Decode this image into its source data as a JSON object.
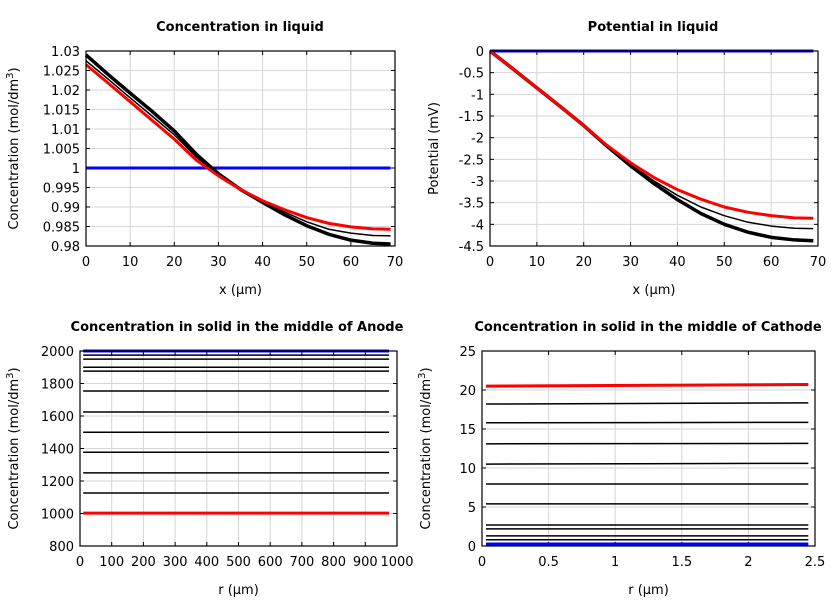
{
  "chart_data": [
    {
      "type": "line",
      "title": "Concentration in liquid",
      "xlabel": "x (µm)",
      "ylabel": "Concentration (mol/dm",
      "ylabel_sup": "3",
      "ylabel_end": ")",
      "xlim": [
        0,
        70
      ],
      "ylim": [
        0.98,
        1.03
      ],
      "xticks": [
        0,
        10,
        20,
        30,
        40,
        50,
        60,
        70
      ],
      "yticks": [
        0.98,
        0.985,
        0.99,
        0.995,
        1,
        1.005,
        1.01,
        1.015,
        1.02,
        1.025,
        1.03
      ],
      "grid": true,
      "x": [
        0,
        5,
        10,
        15,
        20,
        25,
        30,
        35,
        40,
        45,
        50,
        55,
        60,
        65,
        69
      ],
      "series": [
        {
          "color": "#0000ff",
          "width": 3,
          "values": [
            1,
            1,
            1,
            1,
            1,
            1,
            1,
            1,
            1,
            1,
            1,
            1,
            1,
            1,
            1
          ]
        },
        {
          "color": "#000000",
          "width": 3.5,
          "values": [
            1.029,
            1.024,
            1.0192,
            1.0145,
            1.0095,
            1.0035,
            0.9985,
            0.9945,
            0.9912,
            0.988,
            0.9852,
            0.983,
            0.9815,
            0.9807,
            0.9805
          ]
        },
        {
          "color": "#000000",
          "width": 1.5,
          "values": [
            1.0275,
            1.0228,
            1.018,
            1.0133,
            1.0085,
            1.0028,
            0.9982,
            0.9945,
            0.9914,
            0.9887,
            0.9862,
            0.9843,
            0.9833,
            0.9827,
            0.9826
          ]
        },
        {
          "color": "#ff0000",
          "width": 3,
          "values": [
            1.0265,
            1.0218,
            1.017,
            1.0122,
            1.0074,
            1.002,
            0.998,
            0.9945,
            0.9916,
            0.9893,
            0.9873,
            0.9858,
            0.9849,
            0.9844,
            0.9843
          ]
        }
      ]
    },
    {
      "type": "line",
      "title": "Potential in liquid",
      "xlabel": "x (µm)",
      "ylabel": "Potential (mV)",
      "xlim": [
        0,
        70
      ],
      "ylim": [
        -4.5,
        0
      ],
      "xticks": [
        0,
        10,
        20,
        30,
        40,
        50,
        60,
        70
      ],
      "yticks": [
        -4.5,
        -4,
        -3.5,
        -3,
        -2.5,
        -2,
        -1.5,
        -1,
        -0.5,
        0
      ],
      "grid": true,
      "x": [
        0,
        5,
        10,
        15,
        20,
        25,
        30,
        35,
        40,
        45,
        50,
        55,
        60,
        65,
        69
      ],
      "series": [
        {
          "color": "#0000ff",
          "width": 3,
          "values": [
            0,
            0,
            0,
            0,
            0,
            0,
            0,
            0,
            0,
            0,
            0,
            0,
            0,
            0,
            0
          ]
        },
        {
          "color": "#000000",
          "width": 3.5,
          "values": [
            0,
            -0.42,
            -0.85,
            -1.28,
            -1.72,
            -2.2,
            -2.65,
            -3.06,
            -3.43,
            -3.75,
            -4.0,
            -4.18,
            -4.3,
            -4.36,
            -4.38
          ]
        },
        {
          "color": "#000000",
          "width": 1.5,
          "values": [
            0,
            -0.42,
            -0.85,
            -1.28,
            -1.72,
            -2.19,
            -2.62,
            -3.0,
            -3.33,
            -3.6,
            -3.8,
            -3.95,
            -4.04,
            -4.09,
            -4.1
          ]
        },
        {
          "color": "#ff0000",
          "width": 3,
          "values": [
            0,
            -0.42,
            -0.85,
            -1.28,
            -1.72,
            -2.18,
            -2.58,
            -2.92,
            -3.2,
            -3.42,
            -3.6,
            -3.72,
            -3.8,
            -3.85,
            -3.86
          ]
        }
      ]
    },
    {
      "type": "line",
      "title": "Concentration in solid in the middle of Anode",
      "xlabel": "r (µm)",
      "ylabel": "Concentration (mol/dm",
      "ylabel_sup": "3",
      "ylabel_end": ")",
      "xlim": [
        0,
        1000
      ],
      "ylim": [
        800,
        2000
      ],
      "xticks": [
        0,
        100,
        200,
        300,
        400,
        500,
        600,
        700,
        800,
        900,
        1000
      ],
      "yticks": [
        800,
        1000,
        1200,
        1400,
        1600,
        1800,
        2000
      ],
      "grid": true,
      "x": [
        10,
        975
      ],
      "series": [
        {
          "color": "#0000ff",
          "width": 3,
          "values": [
            2000,
            2000
          ]
        },
        {
          "color": "#000000",
          "width": 1.5,
          "values": [
            1975,
            1975
          ]
        },
        {
          "color": "#000000",
          "width": 1.5,
          "values": [
            1950,
            1950
          ]
        },
        {
          "color": "#000000",
          "width": 1.5,
          "values": [
            1900,
            1900
          ]
        },
        {
          "color": "#000000",
          "width": 1.5,
          "values": [
            1876,
            1876
          ]
        },
        {
          "color": "#000000",
          "width": 1.5,
          "values": [
            1754,
            1754
          ]
        },
        {
          "color": "#000000",
          "width": 1.5,
          "values": [
            1625,
            1625
          ]
        },
        {
          "color": "#000000",
          "width": 1.5,
          "values": [
            1500,
            1500
          ]
        },
        {
          "color": "#000000",
          "width": 1.5,
          "values": [
            1377,
            1377
          ]
        },
        {
          "color": "#000000",
          "width": 1.5,
          "values": [
            1250,
            1250
          ]
        },
        {
          "color": "#000000",
          "width": 1.5,
          "values": [
            1126,
            1126
          ]
        },
        {
          "color": "#ff0000",
          "width": 3,
          "values": [
            1002,
            1002
          ]
        }
      ]
    },
    {
      "type": "line",
      "title": "Concentration in solid in the middle of Cathode",
      "xlabel": "r (µm)",
      "ylabel": "Concentration (mol/dm",
      "ylabel_sup": "3",
      "ylabel_end": ")",
      "xlim": [
        0,
        2.5
      ],
      "ylim": [
        0,
        25
      ],
      "xticks": [
        0,
        0.5,
        1,
        1.5,
        2,
        2.5
      ],
      "yticks": [
        0,
        5,
        10,
        15,
        20,
        25
      ],
      "grid": true,
      "x": [
        0.03,
        2.45
      ],
      "series": [
        {
          "color": "#0000ff",
          "width": 3,
          "values": [
            0.25,
            0.25
          ]
        },
        {
          "color": "#000000",
          "width": 1.5,
          "values": [
            0.8,
            0.8
          ]
        },
        {
          "color": "#000000",
          "width": 1.5,
          "values": [
            1.3,
            1.3
          ]
        },
        {
          "color": "#000000",
          "width": 1.5,
          "values": [
            2.2,
            2.2
          ]
        },
        {
          "color": "#000000",
          "width": 1.5,
          "values": [
            2.7,
            2.7
          ]
        },
        {
          "color": "#000000",
          "width": 1.5,
          "values": [
            5.4,
            5.4
          ]
        },
        {
          "color": "#000000",
          "width": 1.5,
          "values": [
            7.95,
            7.95
          ]
        },
        {
          "color": "#000000",
          "width": 1.5,
          "values": [
            10.5,
            10.6
          ]
        },
        {
          "color": "#000000",
          "width": 1.5,
          "values": [
            13.1,
            13.15
          ]
        },
        {
          "color": "#000000",
          "width": 1.5,
          "values": [
            15.8,
            15.85
          ]
        },
        {
          "color": "#000000",
          "width": 1.5,
          "values": [
            18.2,
            18.35
          ]
        },
        {
          "color": "#ff0000",
          "width": 3,
          "values": [
            20.5,
            20.7
          ]
        }
      ]
    }
  ]
}
